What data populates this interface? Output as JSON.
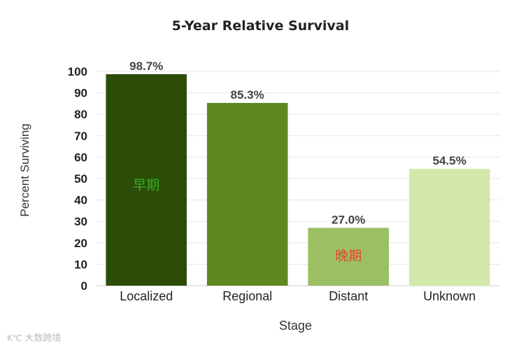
{
  "chart_data": {
    "type": "bar",
    "title": "5-Year Relative Survival",
    "xlabel": "Stage",
    "ylabel": "Percent Surviving",
    "categories": [
      "Localized",
      "Regional",
      "Distant",
      "Unknown"
    ],
    "values": [
      98.7,
      85.3,
      27.0,
      54.5
    ],
    "data_labels": [
      "98.7%",
      "85.3%",
      "27.0%",
      "54.5%"
    ],
    "bar_colors": [
      "#2b4d08",
      "#5f8822",
      "#9bbf63",
      "#d3e8aa"
    ],
    "yticks": [
      0,
      10,
      20,
      30,
      40,
      50,
      60,
      70,
      80,
      90,
      100
    ],
    "ylim": [
      0,
      100
    ],
    "grid": true,
    "annotations": [
      {
        "text": "早期",
        "bar": 0,
        "value": 45,
        "color": "#3aaa2a"
      },
      {
        "text": "晚期",
        "bar": 2,
        "value": 12,
        "color": "#e8452a"
      }
    ]
  },
  "watermark": {
    "text": "大数跨境",
    "icon": "ks-logo-icon"
  }
}
